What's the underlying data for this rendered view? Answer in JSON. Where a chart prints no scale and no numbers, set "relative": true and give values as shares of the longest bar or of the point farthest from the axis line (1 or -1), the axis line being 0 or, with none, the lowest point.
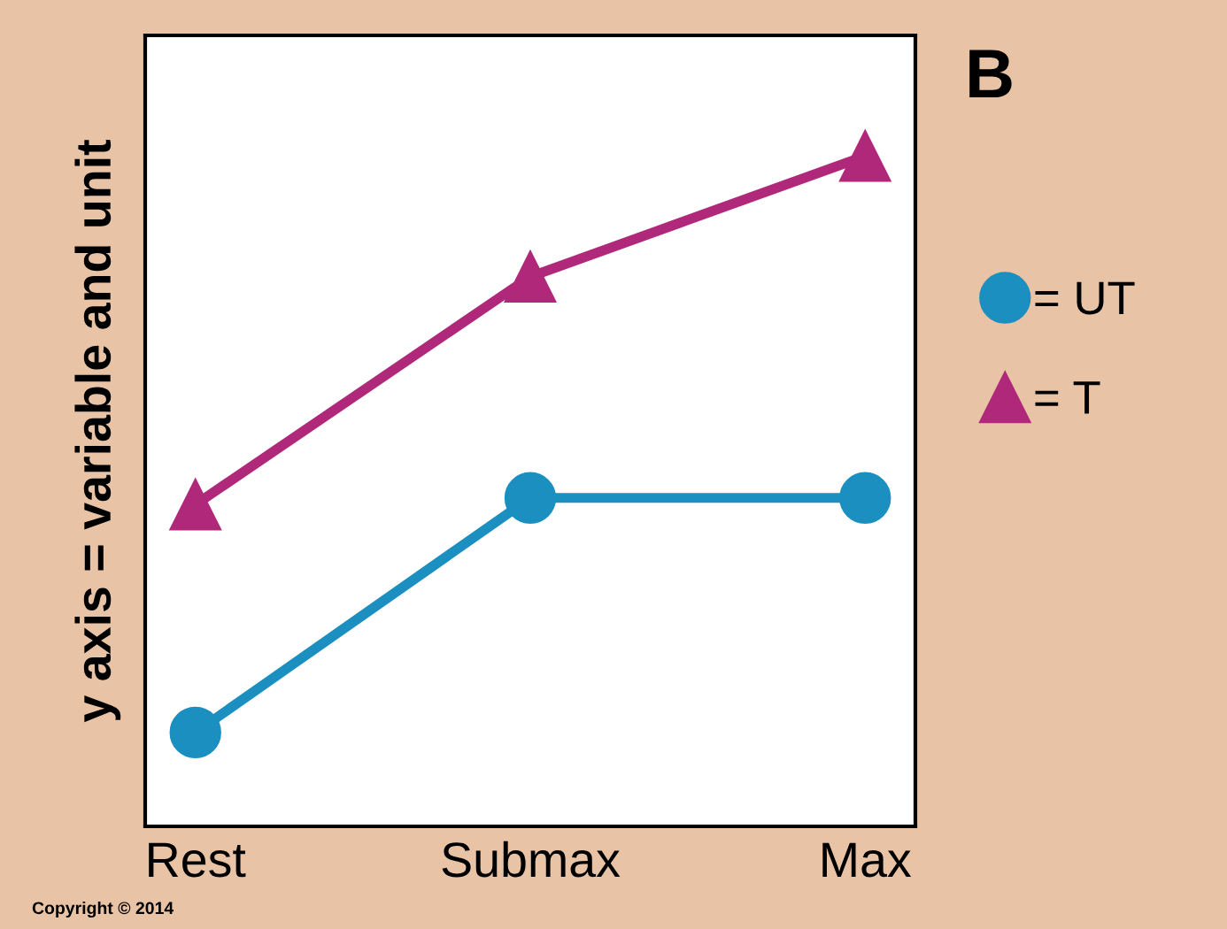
{
  "chart_data": {
    "type": "line",
    "relative": true,
    "ylabel": "y axis = variable and unit",
    "categories": [
      "Rest",
      "Submax",
      "Max"
    ],
    "series": [
      {
        "name": "= UT",
        "color": "#1a8fc0",
        "marker": "circle",
        "values": [
          0.14,
          0.49,
          0.49
        ]
      },
      {
        "name": "= T",
        "color": "#b0287a",
        "marker": "triangle",
        "values": [
          0.48,
          0.82,
          1.0
        ]
      }
    ],
    "legend": "right",
    "grid": false,
    "line_style": "solid",
    "annotations": [
      "B",
      "Copyright © 2014"
    ]
  }
}
